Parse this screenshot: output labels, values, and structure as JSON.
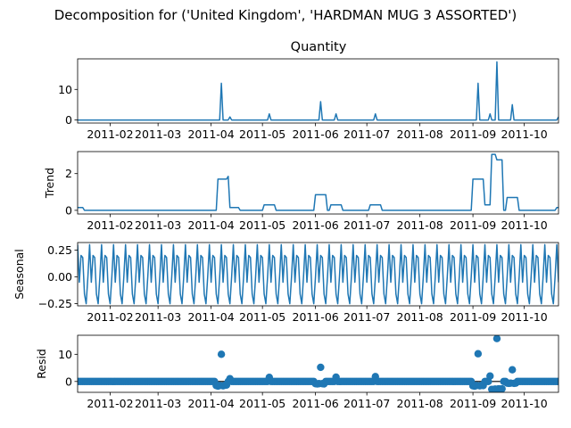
{
  "chart_data": {
    "type": "line",
    "title": "Decomposition for ('United Kingdom', 'HARDMAN MUG 3 ASSORTED')",
    "subtitle": "Quantity",
    "x_range": [
      "2011-01-13",
      "2011-10-21"
    ],
    "x_ticks": [
      "2011-02",
      "2011-03",
      "2011-04",
      "2011-05",
      "2011-06",
      "2011-07",
      "2011-08",
      "2011-09",
      "2011-10"
    ],
    "x_tick_dates": [
      "2011-02-01",
      "2011-03-01",
      "2011-04-01",
      "2011-05-01",
      "2011-06-01",
      "2011-07-01",
      "2011-08-01",
      "2011-09-01",
      "2011-10-01"
    ],
    "line_color": "#1f77b4",
    "panels": [
      {
        "key": "observed",
        "ylabel": "",
        "style": "line",
        "ylim": [
          -1,
          20
        ],
        "yticks": [
          0,
          10
        ],
        "yticklabels": [
          "0",
          "10"
        ],
        "baseline": 0,
        "events": [
          {
            "date": "2011-04-07",
            "value": 12
          },
          {
            "date": "2011-04-12",
            "value": 1
          },
          {
            "date": "2011-05-05",
            "value": 2
          },
          {
            "date": "2011-06-04",
            "value": 6
          },
          {
            "date": "2011-06-13",
            "value": 2
          },
          {
            "date": "2011-07-06",
            "value": 2
          },
          {
            "date": "2011-09-04",
            "value": 12
          },
          {
            "date": "2011-09-11",
            "value": 2
          },
          {
            "date": "2011-09-15",
            "value": 19
          },
          {
            "date": "2011-09-24",
            "value": 5
          },
          {
            "date": "2011-10-21",
            "value": 1
          }
        ]
      },
      {
        "key": "trend",
        "ylabel": "Trend",
        "style": "line",
        "ylim": [
          -0.2,
          3.2
        ],
        "yticks": [
          0,
          2
        ],
        "yticklabels": [
          "0",
          "2"
        ],
        "steps": [
          {
            "date": "2011-01-15",
            "value": 0.15
          },
          {
            "date": "2011-01-17",
            "value": 0
          },
          {
            "date": "2011-04-05",
            "value": 1.7
          },
          {
            "date": "2011-04-11",
            "value": 1.85
          },
          {
            "date": "2011-04-12",
            "value": 0.15
          },
          {
            "date": "2011-04-18",
            "value": 0
          },
          {
            "date": "2011-05-02",
            "value": 0.3
          },
          {
            "date": "2011-05-09",
            "value": 0
          },
          {
            "date": "2011-06-01",
            "value": 0.85
          },
          {
            "date": "2011-06-08",
            "value": 0
          },
          {
            "date": "2011-06-10",
            "value": 0.3
          },
          {
            "date": "2011-06-17",
            "value": 0
          },
          {
            "date": "2011-07-03",
            "value": 0.3
          },
          {
            "date": "2011-07-10",
            "value": 0
          },
          {
            "date": "2011-09-01",
            "value": 1.7
          },
          {
            "date": "2011-09-08",
            "value": 0.3
          },
          {
            "date": "2011-09-12",
            "value": 3.05
          },
          {
            "date": "2011-09-15",
            "value": 2.75
          },
          {
            "date": "2011-09-19",
            "value": 0
          },
          {
            "date": "2011-09-21",
            "value": 0.7
          },
          {
            "date": "2011-09-28",
            "value": 0
          },
          {
            "date": "2011-10-20",
            "value": 0.15
          }
        ],
        "end_date": "2011-10-21"
      },
      {
        "key": "seasonal",
        "ylabel": "Seasonal",
        "style": "line",
        "ylim": [
          -0.27,
          0.32
        ],
        "yticks": [
          -0.25,
          0,
          0.25
        ],
        "yticklabels": [
          "−0.25",
          "0.00",
          "0.25"
        ],
        "period_days": 7,
        "pattern": [
          0.3,
          -0.05,
          0.2,
          0.18,
          -0.16,
          -0.25,
          0.0
        ]
      },
      {
        "key": "resid",
        "ylabel": "Resid",
        "style": "scatter",
        "ylim": [
          -4,
          17
        ],
        "yticks": [
          0,
          10
        ],
        "yticklabels": [
          "0",
          "10"
        ],
        "outliers": [
          {
            "date": "2011-04-04",
            "value": -1.5
          },
          {
            "date": "2011-04-05",
            "value": -1.7
          },
          {
            "date": "2011-04-06",
            "value": -1.5
          },
          {
            "date": "2011-04-07",
            "value": 10
          },
          {
            "date": "2011-04-08",
            "value": -1.6
          },
          {
            "date": "2011-04-09",
            "value": -1.4
          },
          {
            "date": "2011-04-10",
            "value": -1.3
          },
          {
            "date": "2011-04-12",
            "value": 1
          },
          {
            "date": "2011-05-05",
            "value": 1.5
          },
          {
            "date": "2011-06-01",
            "value": -0.8
          },
          {
            "date": "2011-06-02",
            "value": -0.9
          },
          {
            "date": "2011-06-03",
            "value": -0.8
          },
          {
            "date": "2011-06-04",
            "value": 5.2
          },
          {
            "date": "2011-06-05",
            "value": -0.8
          },
          {
            "date": "2011-06-06",
            "value": -0.9
          },
          {
            "date": "2011-06-13",
            "value": 1.6
          },
          {
            "date": "2011-07-06",
            "value": 1.8
          },
          {
            "date": "2011-09-01",
            "value": -1.6
          },
          {
            "date": "2011-09-02",
            "value": -1.7
          },
          {
            "date": "2011-09-03",
            "value": -1.5
          },
          {
            "date": "2011-09-04",
            "value": 10.2
          },
          {
            "date": "2011-09-05",
            "value": -1.6
          },
          {
            "date": "2011-09-06",
            "value": -1.4
          },
          {
            "date": "2011-09-07",
            "value": -1.5
          },
          {
            "date": "2011-09-11",
            "value": 2
          },
          {
            "date": "2011-09-12",
            "value": -2.9
          },
          {
            "date": "2011-09-13",
            "value": -3
          },
          {
            "date": "2011-09-14",
            "value": -2.8
          },
          {
            "date": "2011-09-15",
            "value": 15.8
          },
          {
            "date": "2011-09-16",
            "value": -2.7
          },
          {
            "date": "2011-09-17",
            "value": -2.8
          },
          {
            "date": "2011-09-18",
            "value": -2.7
          },
          {
            "date": "2011-09-21",
            "value": -0.6
          },
          {
            "date": "2011-09-22",
            "value": -0.7
          },
          {
            "date": "2011-09-23",
            "value": -0.6
          },
          {
            "date": "2011-09-24",
            "value": 4.3
          },
          {
            "date": "2011-09-25",
            "value": -0.7
          },
          {
            "date": "2011-09-26",
            "value": -0.6
          }
        ]
      }
    ]
  }
}
